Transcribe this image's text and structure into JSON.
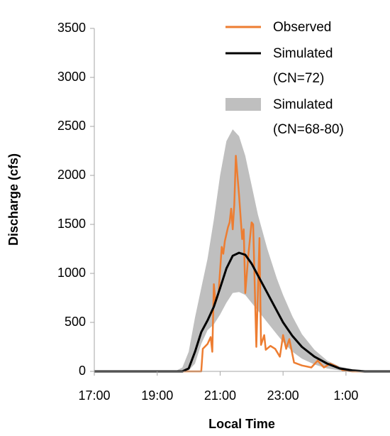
{
  "chart_data": {
    "type": "line",
    "xlabel": "Local Time",
    "ylabel": "Discharge (cfs)",
    "xlim": [
      17,
      26.4
    ],
    "ylim": [
      0,
      3500
    ],
    "xticks": [
      {
        "value": 17,
        "label": "17:00"
      },
      {
        "value": 19,
        "label": "19:00"
      },
      {
        "value": 21,
        "label": "21:00"
      },
      {
        "value": 23,
        "label": "23:00"
      },
      {
        "value": 25,
        "label": "1:00"
      }
    ],
    "yticks": [
      0,
      500,
      1000,
      1500,
      2000,
      2500,
      3000,
      3500
    ],
    "legend": "upper right",
    "series": [
      {
        "name": "Observed",
        "color": "#ed7d31",
        "kind": "line",
        "x": [
          17,
          20.4,
          20.45,
          20.6,
          20.7,
          20.75,
          20.8,
          20.85,
          20.95,
          21.05,
          21.1,
          21.15,
          21.25,
          21.3,
          21.35,
          21.4,
          21.45,
          21.5,
          21.6,
          21.7,
          21.75,
          21.8,
          21.9,
          22.0,
          22.05,
          22.15,
          22.25,
          22.3,
          22.4,
          22.45,
          22.6,
          22.75,
          22.9,
          23.0,
          23.1,
          23.2,
          23.35,
          23.6,
          23.9,
          24.1,
          24.3,
          24.5,
          24.7,
          24.9,
          25.2,
          26.4
        ],
        "values": [
          0,
          0,
          230,
          280,
          350,
          200,
          890,
          700,
          800,
          1270,
          1200,
          1330,
          1470,
          1520,
          1660,
          1450,
          1700,
          2200,
          1800,
          1350,
          1450,
          800,
          1200,
          1520,
          1500,
          250,
          1360,
          270,
          370,
          220,
          260,
          230,
          150,
          370,
          230,
          330,
          90,
          60,
          40,
          110,
          40,
          80,
          50,
          10,
          0,
          0
        ]
      },
      {
        "name": "Simulated (CN=72)",
        "color": "#000000",
        "kind": "line",
        "x": [
          17,
          19,
          19.6,
          19.8,
          20,
          20.2,
          20.4,
          20.6,
          20.8,
          21,
          21.2,
          21.4,
          21.6,
          21.8,
          22,
          22.2,
          22.5,
          22.8,
          23,
          23.3,
          23.6,
          24,
          24.4,
          24.8,
          25.2,
          25.6,
          26.4
        ],
        "values": [
          0,
          0,
          0,
          0,
          30,
          200,
          400,
          520,
          660,
          850,
          1050,
          1180,
          1210,
          1190,
          1100,
          980,
          800,
          620,
          500,
          360,
          250,
          150,
          80,
          30,
          10,
          0,
          0
        ]
      },
      {
        "name": "Simulated (CN=68-80)",
        "color": "#bfbfbf",
        "kind": "band",
        "x": [
          17,
          19,
          19.6,
          19.8,
          20,
          20.2,
          20.4,
          20.6,
          20.8,
          21,
          21.2,
          21.4,
          21.6,
          21.8,
          22,
          22.2,
          22.5,
          22.8,
          23,
          23.3,
          23.6,
          24,
          24.4,
          24.8,
          25.2,
          25.6,
          26.4
        ],
        "upper": [
          0,
          0,
          5,
          40,
          200,
          550,
          850,
          1150,
          1550,
          2000,
          2350,
          2470,
          2400,
          2200,
          1900,
          1600,
          1250,
          950,
          780,
          560,
          380,
          220,
          110,
          50,
          20,
          5,
          0
        ],
        "lower": [
          0,
          0,
          0,
          0,
          10,
          80,
          280,
          420,
          480,
          580,
          700,
          800,
          810,
          780,
          700,
          620,
          500,
          380,
          300,
          200,
          130,
          70,
          30,
          10,
          3,
          0,
          0
        ]
      }
    ]
  }
}
